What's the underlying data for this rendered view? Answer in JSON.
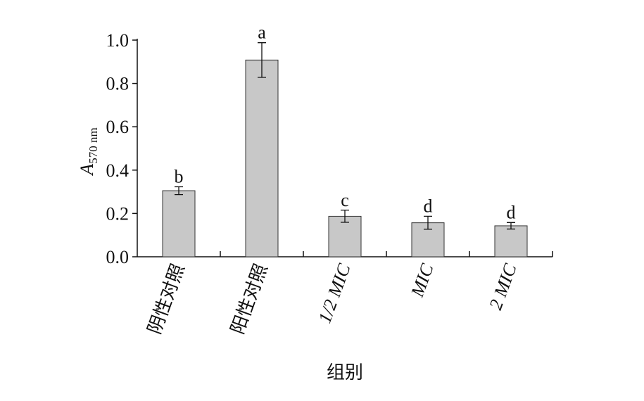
{
  "chart_data": {
    "type": "bar",
    "categories": [
      "阴性对照",
      "阳性对照",
      "1/2 MIC",
      "MIC",
      "2 MIC"
    ],
    "values": [
      0.305,
      0.908,
      0.187,
      0.157,
      0.143
    ],
    "errors": [
      0.018,
      0.08,
      0.028,
      0.03,
      0.015
    ],
    "annotations": [
      "b",
      "a",
      "c",
      "d",
      "d"
    ],
    "color": "#c8c8c8",
    "xlabel": "组别",
    "ylabel": "A",
    "ylabel_sub": "570 nm",
    "ylim": [
      0,
      1.0
    ],
    "yticks": [
      {
        "value": 0,
        "label": "0.0"
      },
      0.2,
      0.4,
      0.6,
      0.8,
      {
        "value": 1.0,
        "label": "1.0"
      }
    ]
  }
}
